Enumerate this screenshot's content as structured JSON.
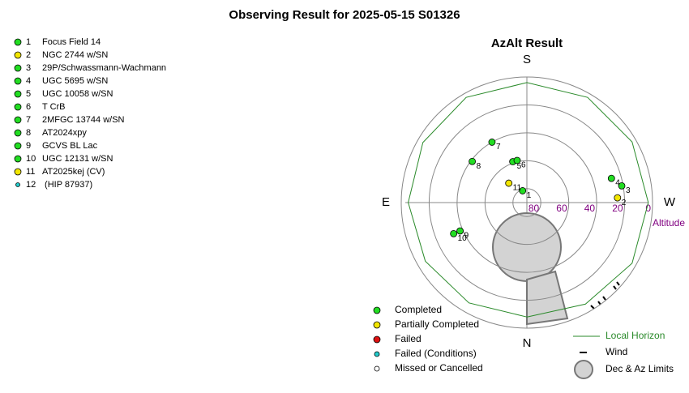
{
  "chart_data": {
    "type": "polar",
    "title": "Observing Result for 2025-05-15 S01326",
    "subtitle": "AzAlt Result",
    "directions": {
      "S": "S",
      "E": "E",
      "W": "W",
      "N": "N"
    },
    "r_label": "Altitude",
    "rlim": [
      90,
      0
    ],
    "rticks": [
      80,
      60,
      40,
      20,
      0
    ],
    "grid": true,
    "statuses": [
      {
        "name": "Completed",
        "color": "#22dd22"
      },
      {
        "name": "Partially Completed",
        "color": "#f2e600"
      },
      {
        "name": "Failed",
        "color": "#dd1111"
      },
      {
        "name": "Failed (Conditions)",
        "color": "#22cccc"
      },
      {
        "name": "Missed or Cancelled",
        "color": "#ffffff"
      }
    ],
    "targets": [
      {
        "id": 1,
        "name": "Focus Field 14",
        "color": "#22dd22",
        "az": 160,
        "alt": 81
      },
      {
        "id": 2,
        "name": "NGC 2744 w/SN",
        "color": "#f2e600",
        "az": 267,
        "alt": 25
      },
      {
        "id": 3,
        "name": "29P/Schwassmann-Wachmann",
        "color": "#22dd22",
        "az": 260,
        "alt": 21
      },
      {
        "id": 4,
        "name": "UGC 5695 w/SN",
        "color": "#22dd22",
        "az": 254,
        "alt": 27
      },
      {
        "id": 5,
        "name": "UGC 10058 w/SN",
        "color": "#22dd22",
        "az": 161,
        "alt": 59
      },
      {
        "id": 6,
        "name": "T CrB",
        "color": "#22dd22",
        "az": 167,
        "alt": 59
      },
      {
        "id": 7,
        "name": "2MFGC 13744 w/SN",
        "color": "#22dd22",
        "az": 150,
        "alt": 40
      },
      {
        "id": 8,
        "name": "AT2024xpy",
        "color": "#22dd22",
        "az": 127,
        "alt": 41
      },
      {
        "id": 9,
        "name": "GCVS BL Lac",
        "color": "#22dd22",
        "az": 67,
        "alt": 38
      },
      {
        "id": 10,
        "name": "UGC 12131 w/SN",
        "color": "#22dd22",
        "az": 67,
        "alt": 33
      },
      {
        "id": 11,
        "name": "AT2025kej (CV)",
        "color": "#f2e600",
        "az": 137,
        "alt": 71
      },
      {
        "id": 12,
        "name": " (HIP 87937)",
        "color": "#22cccc",
        "az": null,
        "alt": null
      }
    ],
    "horizon": {
      "name": "Local Horizon",
      "color": "#2a8a2a",
      "az": [
        0,
        30,
        60,
        90,
        120,
        150,
        180,
        210,
        240,
        270,
        300,
        330,
        360
      ],
      "alt": [
        8,
        7,
        6,
        5,
        4,
        3,
        4,
        3,
        3,
        3,
        3,
        6,
        8
      ]
    },
    "wind_label": "Wind",
    "limits_label": "Dec & Az Limits"
  }
}
